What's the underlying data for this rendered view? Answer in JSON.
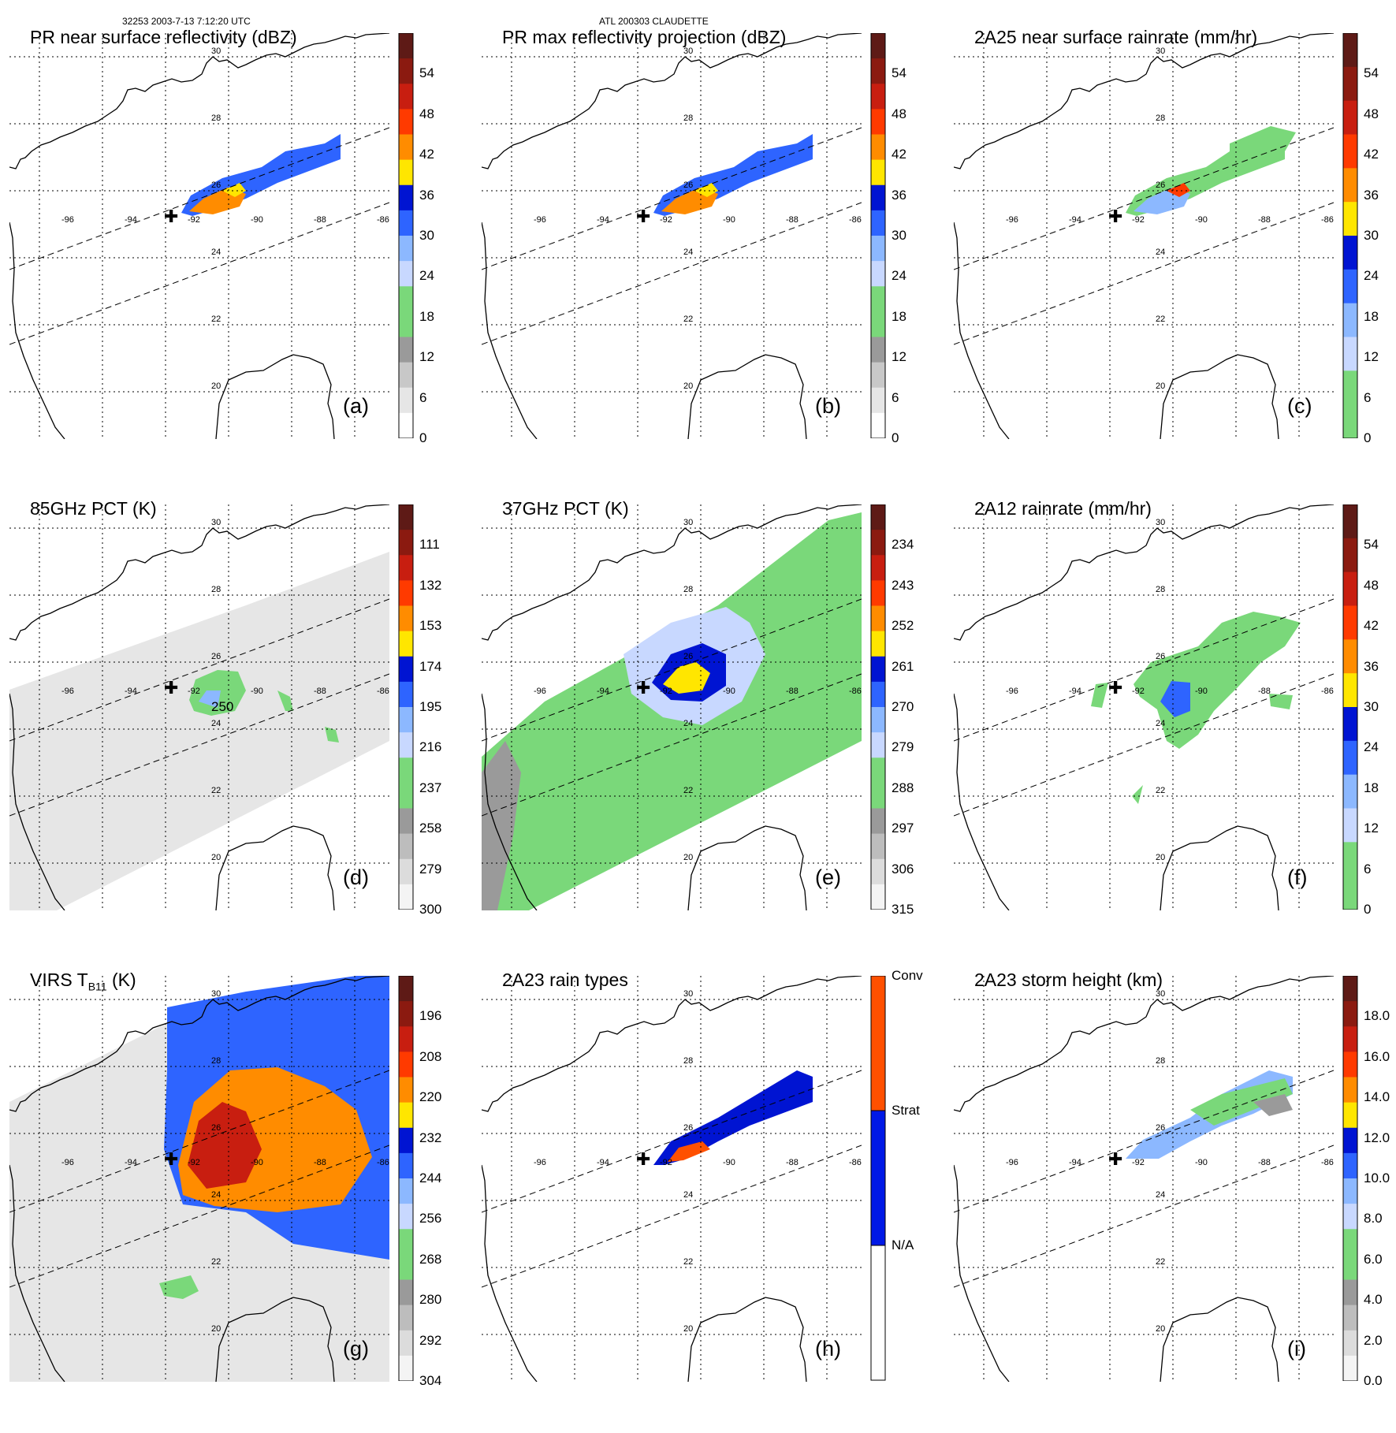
{
  "header": {
    "orbit_time": "32253 2003-7-13 7:12:20 UTC",
    "storm": "ATL 200303 CLAUDETTE"
  },
  "grid_labels": {
    "lon": [
      "-96",
      "-94",
      "-92",
      "-90",
      "-88",
      "-86"
    ],
    "lat": [
      "30",
      "28",
      "26",
      "24",
      "22",
      "20"
    ]
  },
  "contour_label": "250",
  "colors": {
    "convective": "#ff5000",
    "stratiform": "#0019e6",
    "rain_light": "#7ad87a",
    "gray_background": "#e0e0e0"
  },
  "panels": [
    {
      "id": "a",
      "title": "PR near surface reflectivity (dBZ)",
      "title_sub": "",
      "title_after": "",
      "label": "(a)",
      "scale": "dbz",
      "ticks": [
        "54",
        "48",
        "42",
        "36",
        "30",
        "24",
        "18",
        "12",
        "6",
        "0"
      ]
    },
    {
      "id": "b",
      "title": "PR max reflectivity projection (dBZ)",
      "title_sub": "",
      "title_after": "",
      "label": "(b)",
      "scale": "dbz",
      "ticks": [
        "54",
        "48",
        "42",
        "36",
        "30",
        "24",
        "18",
        "12",
        "6",
        "0"
      ]
    },
    {
      "id": "c",
      "title": "2A25 near surface rainrate (mm/hr)",
      "title_sub": "",
      "title_after": "",
      "label": "(c)",
      "scale": "rain",
      "ticks": [
        "54",
        "48",
        "42",
        "36",
        "30",
        "24",
        "18",
        "12",
        "6",
        "0"
      ]
    },
    {
      "id": "d",
      "title": "85GHz PCT (K)",
      "title_sub": "",
      "title_after": "",
      "label": "(d)",
      "scale": "pct",
      "ticks": [
        "111",
        "132",
        "153",
        "174",
        "195",
        "216",
        "237",
        "258",
        "279",
        "300"
      ]
    },
    {
      "id": "e",
      "title": "37GHz PCT (K)",
      "title_sub": "",
      "title_after": "",
      "label": "(e)",
      "scale": "pct",
      "ticks": [
        "234",
        "243",
        "252",
        "261",
        "270",
        "279",
        "288",
        "297",
        "306",
        "315"
      ]
    },
    {
      "id": "f",
      "title": "2A12 rainrate (mm/hr)",
      "title_sub": "",
      "title_after": "",
      "label": "(f)",
      "scale": "rain",
      "ticks": [
        "54",
        "48",
        "42",
        "36",
        "30",
        "24",
        "18",
        "12",
        "6",
        "0"
      ]
    },
    {
      "id": "g",
      "title": "VIRS T",
      "title_sub": "B11",
      "title_after": " (K)",
      "label": "(g)",
      "scale": "pct",
      "ticks": [
        "196",
        "208",
        "220",
        "232",
        "244",
        "256",
        "268",
        "280",
        "292",
        "304"
      ]
    },
    {
      "id": "h",
      "title": "2A23 rain types",
      "title_sub": "",
      "title_after": "",
      "label": "(h)",
      "scale": "types",
      "ticks": [
        "Conv",
        "Strat",
        "N/A"
      ]
    },
    {
      "id": "i",
      "title": "2A23 storm height (km)",
      "title_sub": "",
      "title_after": "",
      "label": "(i)",
      "scale": "pct",
      "ticks": [
        "18.0",
        "16.0",
        "14.0",
        "12.0",
        "10.0",
        "8.0",
        "6.0",
        "4.0",
        "2.0",
        "0.0"
      ]
    }
  ]
}
